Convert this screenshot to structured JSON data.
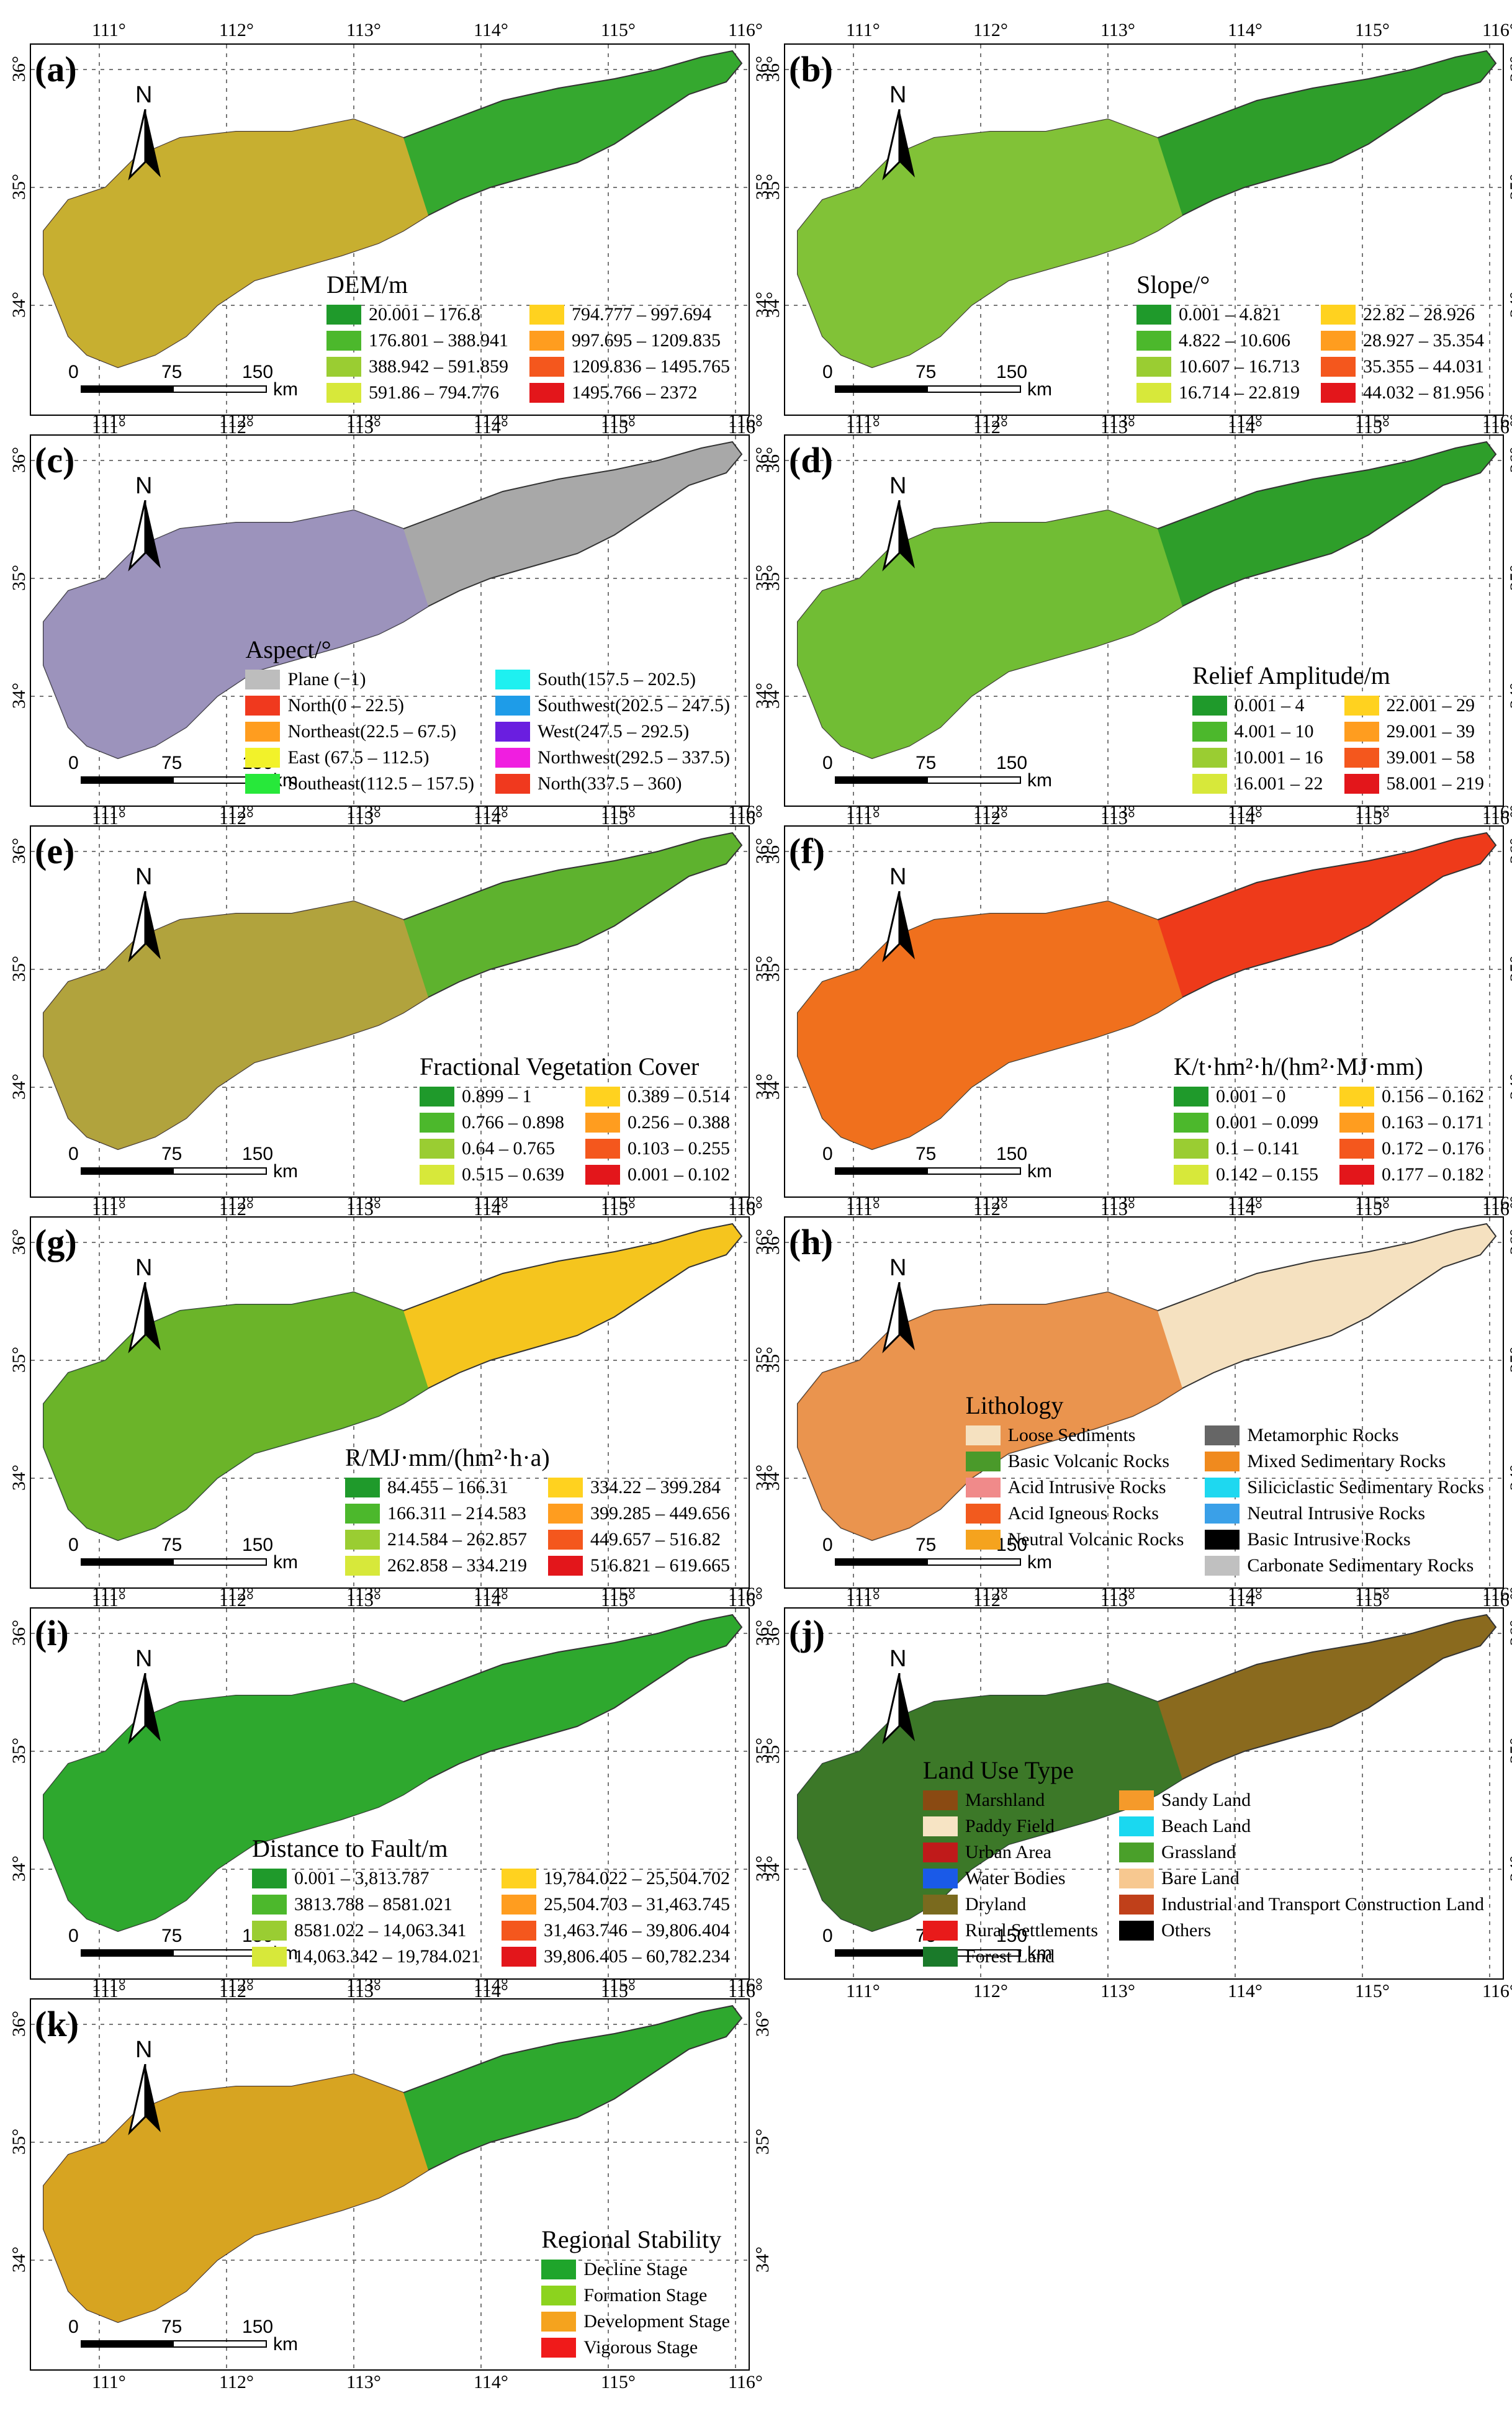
{
  "lon_ticks": [
    "111°",
    "112°",
    "113°",
    "114°",
    "115°",
    "116°"
  ],
  "lat_ticks": [
    "36°",
    "35°",
    "34°"
  ],
  "scale": {
    "z": "0",
    "a": "75",
    "b": "150",
    "unit": "km"
  },
  "north": "N",
  "panels": [
    {
      "label": "(a)",
      "fill": "#35a82f",
      "west": "#e0b030",
      "title": "DEM/m",
      "cols": [
        [
          {
            "c": "#1f9a2b",
            "t": "20.001 – 176.8"
          },
          {
            "c": "#4cb82c",
            "t": "176.801 – 388.941"
          },
          {
            "c": "#9acd32",
            "t": "388.942 – 591.859"
          },
          {
            "c": "#d7e83a",
            "t": "591.86 – 794.776"
          }
        ],
        [
          {
            "c": "#ffd21f",
            "t": "794.777 – 997.694"
          },
          {
            "c": "#ff9d1f",
            "t": "997.695 – 1209.835"
          },
          {
            "c": "#f4571d",
            "t": "1209.836 – 1495.765"
          },
          {
            "c": "#e3161b",
            "t": "1495.766 – 2372"
          }
        ]
      ]
    },
    {
      "label": "(b)",
      "fill": "#2e9e2a",
      "west": "#8fc83a",
      "title": "Slope/°",
      "cols": [
        [
          {
            "c": "#1f9a2b",
            "t": "0.001 – 4.821"
          },
          {
            "c": "#4cb82c",
            "t": "4.822 – 10.606"
          },
          {
            "c": "#9acd32",
            "t": "10.607 – 16.713"
          },
          {
            "c": "#d7e83a",
            "t": "16.714 – 22.819"
          }
        ],
        [
          {
            "c": "#ffd21f",
            "t": "22.82 – 28.926"
          },
          {
            "c": "#ff9d1f",
            "t": "28.927 – 35.354"
          },
          {
            "c": "#f4571d",
            "t": "35.355 – 44.031"
          },
          {
            "c": "#e3161b",
            "t": "44.032 – 81.956"
          }
        ]
      ]
    },
    {
      "label": "(c)",
      "fill": "#a8a8a8",
      "west": "#9a8fbf",
      "title": "Aspect/°",
      "cols": [
        [
          {
            "c": "#bdbdbd",
            "t": "Plane (−1)"
          },
          {
            "c": "#f0391e",
            "t": "North(0 – 22.5)"
          },
          {
            "c": "#ff9d1f",
            "t": "Northeast(22.5 – 67.5)"
          },
          {
            "c": "#f2f22a",
            "t": "East (67.5 – 112.5)"
          },
          {
            "c": "#27e83a",
            "t": "Southeast(112.5 – 157.5)"
          }
        ],
        [
          {
            "c": "#1ef0f0",
            "t": "South(157.5 – 202.5)"
          },
          {
            "c": "#1e9ce8",
            "t": "Southwest(202.5 – 247.5)"
          },
          {
            "c": "#6a1ee0",
            "t": "West(247.5 – 292.5)"
          },
          {
            "c": "#f01ee0",
            "t": "Northwest(292.5 – 337.5)"
          },
          {
            "c": "#f0391e",
            "t": "North(337.5 – 360)"
          }
        ]
      ]
    },
    {
      "label": "(d)",
      "fill": "#2e9e2a",
      "west": "#7cc236",
      "title": "Relief Amplitude/m",
      "cols": [
        [
          {
            "c": "#1f9a2b",
            "t": "0.001 – 4"
          },
          {
            "c": "#4cb82c",
            "t": "4.001 – 10"
          },
          {
            "c": "#9acd32",
            "t": "10.001 – 16"
          },
          {
            "c": "#d7e83a",
            "t": "16.001 – 22"
          }
        ],
        [
          {
            "c": "#ffd21f",
            "t": "22.001 – 29"
          },
          {
            "c": "#ff9d1f",
            "t": "29.001 – 39"
          },
          {
            "c": "#f4571d",
            "t": "39.001 – 58"
          },
          {
            "c": "#e3161b",
            "t": "58.001 – 219"
          }
        ]
      ]
    },
    {
      "label": "(e)",
      "fill": "#5eb22e",
      "west": "#c0a040",
      "title": "Fractional Vegetation Cover",
      "cols": [
        [
          {
            "c": "#1f9a2b",
            "t": "0.899 – 1"
          },
          {
            "c": "#4cb82c",
            "t": "0.766 – 0.898"
          },
          {
            "c": "#9acd32",
            "t": "0.64 – 0.765"
          },
          {
            "c": "#d7e83a",
            "t": "0.515 – 0.639"
          }
        ],
        [
          {
            "c": "#ffd21f",
            "t": "0.389 – 0.514"
          },
          {
            "c": "#ff9d1f",
            "t": "0.256 – 0.388"
          },
          {
            "c": "#f4571d",
            "t": "0.103 – 0.255"
          },
          {
            "c": "#e3161b",
            "t": "0.001 – 0.102"
          }
        ]
      ]
    },
    {
      "label": "(f)",
      "fill": "#ee3a1a",
      "west": "#f07a1e",
      "title": "K/t·hm²·h/(hm²·MJ·mm)",
      "cols": [
        [
          {
            "c": "#1f9a2b",
            "t": "0.001 – 0"
          },
          {
            "c": "#4cb82c",
            "t": "0.001 – 0.099"
          },
          {
            "c": "#9acd32",
            "t": "0.1 – 0.141"
          },
          {
            "c": "#d7e83a",
            "t": "0.142 – 0.155"
          }
        ],
        [
          {
            "c": "#ffd21f",
            "t": "0.156 – 0.162"
          },
          {
            "c": "#ff9d1f",
            "t": "0.163 – 0.171"
          },
          {
            "c": "#f4571d",
            "t": "0.172 – 0.176"
          },
          {
            "c": "#e3161b",
            "t": "0.177 – 0.182"
          }
        ]
      ]
    },
    {
      "label": "(g)",
      "fill": "#f5c51e",
      "west": "#52b02c",
      "title": "R/MJ·mm/(hm²·h·a)",
      "cols": [
        [
          {
            "c": "#1f9a2b",
            "t": "84.455 – 166.31"
          },
          {
            "c": "#4cb82c",
            "t": "166.311 – 214.583"
          },
          {
            "c": "#9acd32",
            "t": "214.584 – 262.857"
          },
          {
            "c": "#d7e83a",
            "t": "262.858 – 334.219"
          }
        ],
        [
          {
            "c": "#ffd21f",
            "t": "334.22 – 399.284"
          },
          {
            "c": "#ff9d1f",
            "t": "399.285 – 449.656"
          },
          {
            "c": "#f4571d",
            "t": "449.657 – 516.82"
          },
          {
            "c": "#e3161b",
            "t": "516.821 – 619.665"
          }
        ]
      ]
    },
    {
      "label": "(h)",
      "fill": "#f5e1c0",
      "west": "#e8863a",
      "title": "Lithology",
      "cols": [
        [
          {
            "c": "#f5e1c0",
            "t": "Loose Sediments"
          },
          {
            "c": "#4a9a2a",
            "t": "Basic Volcanic Rocks"
          },
          {
            "c": "#f08a8a",
            "t": "Acid Intrusive Rocks"
          },
          {
            "c": "#f25a1e",
            "t": "Acid Igneous Rocks"
          },
          {
            "c": "#f5a31e",
            "t": "Neutral Volcanic Rocks"
          }
        ],
        [
          {
            "c": "#666666",
            "t": "Metamorphic Rocks"
          },
          {
            "c": "#f08a1e",
            "t": "Mixed Sedimentary Rocks"
          },
          {
            "c": "#1ed8f0",
            "t": "Siliciclastic Sedimentary Rocks"
          },
          {
            "c": "#3aa0e8",
            "t": "Neutral Intrusive Rocks"
          },
          {
            "c": "#000000",
            "t": "Basic Intrusive Rocks"
          },
          {
            "c": "#c0c0c0",
            "t": "Carbonate Sedimentary Rocks"
          }
        ]
      ]
    },
    {
      "label": "(i)",
      "fill": "#2ea82e",
      "west": "#2ea82e",
      "title": "Distance to Fault/m",
      "cols": [
        [
          {
            "c": "#1f9a2b",
            "t": "0.001 – 3,813.787"
          },
          {
            "c": "#4cb82c",
            "t": "3813.788 – 8581.021"
          },
          {
            "c": "#9acd32",
            "t": "8581.022 – 14,063.341"
          },
          {
            "c": "#d7e83a",
            "t": "14,063.342 – 19,784.021"
          }
        ],
        [
          {
            "c": "#ffd21f",
            "t": "19,784.022 – 25,504.702"
          },
          {
            "c": "#ff9d1f",
            "t": "25,504.703 – 31,463.745"
          },
          {
            "c": "#f4571d",
            "t": "31,463.746 – 39,806.404"
          },
          {
            "c": "#e3161b",
            "t": "39,806.405 – 60,782.234"
          }
        ]
      ]
    },
    {
      "label": "(j)",
      "fill": "#8a6a1e",
      "west": "#2e7a2a",
      "title": "Land Use Type",
      "cols": [
        [
          {
            "c": "#8a4a12",
            "t": "Marshland"
          },
          {
            "c": "#f7e4c4",
            "t": "Paddy Field"
          },
          {
            "c": "#c01a1a",
            "t": "Urban Area"
          },
          {
            "c": "#1a5ae8",
            "t": "Water Bodies"
          },
          {
            "c": "#7a6a1e",
            "t": "Dryland"
          },
          {
            "c": "#e81a1a",
            "t": "Rural Settlements"
          },
          {
            "c": "#1a7a2a",
            "t": "Forest Land"
          }
        ],
        [
          {
            "c": "#f59a2a",
            "t": "Sandy Land"
          },
          {
            "c": "#1ad8f0",
            "t": "Beach Land"
          },
          {
            "c": "#4aa02a",
            "t": "Grassland"
          },
          {
            "c": "#f7c890",
            "t": "Bare Land"
          },
          {
            "c": "#c0401a",
            "t": "Industrial and Transport Construction Land"
          },
          {
            "c": "#000000",
            "t": "Others"
          }
        ]
      ]
    },
    {
      "label": "(k)",
      "fill": "#2ea82e",
      "west": "#f5a31e",
      "title": "Regional Stability",
      "cols": [
        [
          {
            "c": "#1fa52b",
            "t": "Decline Stage"
          },
          {
            "c": "#8cd31e",
            "t": "Formation Stage"
          },
          {
            "c": "#f5a31e",
            "t": "Development Stage"
          },
          {
            "c": "#f01a1a",
            "t": "Vigorous Stage"
          }
        ]
      ]
    }
  ]
}
